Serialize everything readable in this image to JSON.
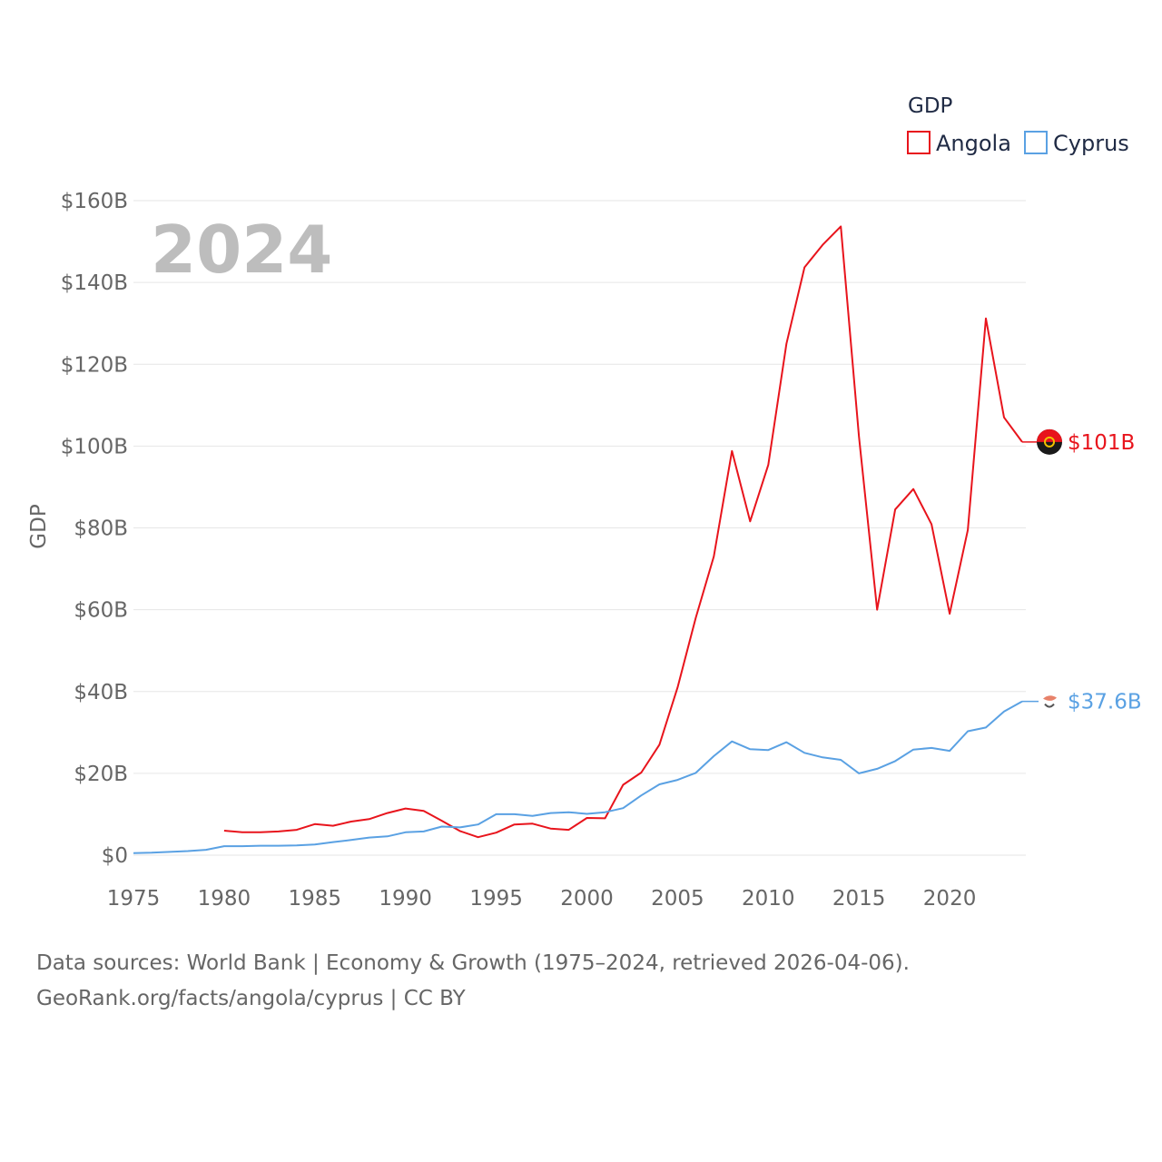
{
  "chart_data": {
    "type": "line",
    "year_label": "2024",
    "ylabel": "GDP",
    "xlim": [
      1975,
      2024
    ],
    "ylim": [
      0,
      160
    ],
    "x_ticks": [
      1975,
      1980,
      1985,
      1990,
      1995,
      2000,
      2005,
      2010,
      2015,
      2020
    ],
    "y_ticks": [
      0,
      20,
      40,
      60,
      80,
      100,
      120,
      140,
      160
    ],
    "y_tick_labels": [
      "$0",
      "$20B",
      "$40B",
      "$60B",
      "$80B",
      "$100B",
      "$120B",
      "$140B",
      "$160B"
    ],
    "legend": {
      "title": "GDP",
      "position": "top-right"
    },
    "series": [
      {
        "name": "Angola",
        "color": "#e8141c",
        "end_label": "$101B",
        "end_marker": "angola-flag",
        "x": [
          1980,
          1981,
          1982,
          1983,
          1984,
          1985,
          1986,
          1987,
          1988,
          1989,
          1990,
          1991,
          1992,
          1993,
          1994,
          1995,
          1996,
          1997,
          1998,
          1999,
          2000,
          2001,
          2002,
          2003,
          2004,
          2005,
          2006,
          2007,
          2008,
          2009,
          2010,
          2011,
          2012,
          2013,
          2014,
          2015,
          2016,
          2017,
          2018,
          2019,
          2020,
          2021,
          2022,
          2023,
          2024
        ],
        "values": [
          6.0,
          5.6,
          5.6,
          5.8,
          6.2,
          7.6,
          7.2,
          8.2,
          8.8,
          10.3,
          11.4,
          10.8,
          8.4,
          5.9,
          4.4,
          5.5,
          7.5,
          7.7,
          6.5,
          6.2,
          9.1,
          9.0,
          17.2,
          20.2,
          27.0,
          41.0,
          58.0,
          73.0,
          98.8,
          81.6,
          95.4,
          125.0,
          143.7,
          149.2,
          153.7,
          102.3,
          60.0,
          84.5,
          89.5,
          80.9,
          59.0,
          79.5,
          131.2,
          107.0,
          101.0
        ]
      },
      {
        "name": "Cyprus",
        "color": "#5aa1e3",
        "end_label": "$37.6B",
        "end_marker": "cyprus-flag",
        "x": [
          1975,
          1976,
          1977,
          1978,
          1979,
          1980,
          1981,
          1982,
          1983,
          1984,
          1985,
          1986,
          1987,
          1988,
          1989,
          1990,
          1991,
          1992,
          1993,
          1994,
          1995,
          1996,
          1997,
          1998,
          1999,
          2000,
          2001,
          2002,
          2003,
          2004,
          2005,
          2006,
          2007,
          2008,
          2009,
          2010,
          2011,
          2012,
          2013,
          2014,
          2015,
          2016,
          2017,
          2018,
          2019,
          2020,
          2021,
          2022,
          2023,
          2024
        ],
        "values": [
          0.5,
          0.6,
          0.8,
          1.0,
          1.3,
          2.2,
          2.2,
          2.3,
          2.3,
          2.4,
          2.6,
          3.2,
          3.7,
          4.3,
          4.6,
          5.6,
          5.8,
          7.0,
          6.8,
          7.5,
          10.0,
          10.0,
          9.6,
          10.3,
          10.5,
          10.1,
          10.5,
          11.5,
          14.6,
          17.3,
          18.4,
          20.1,
          24.2,
          27.8,
          25.9,
          25.7,
          27.6,
          25.0,
          23.9,
          23.3,
          20.0,
          21.1,
          23.0,
          25.8,
          26.2,
          25.5,
          30.3,
          31.2,
          35.1,
          37.6
        ]
      }
    ]
  },
  "source": {
    "line1": "Data sources: World Bank | Economy & Growth (1975–2024, retrieved 2026-04-06).",
    "line2": "GeoRank.org/facts/angola/cyprus | CC BY"
  }
}
